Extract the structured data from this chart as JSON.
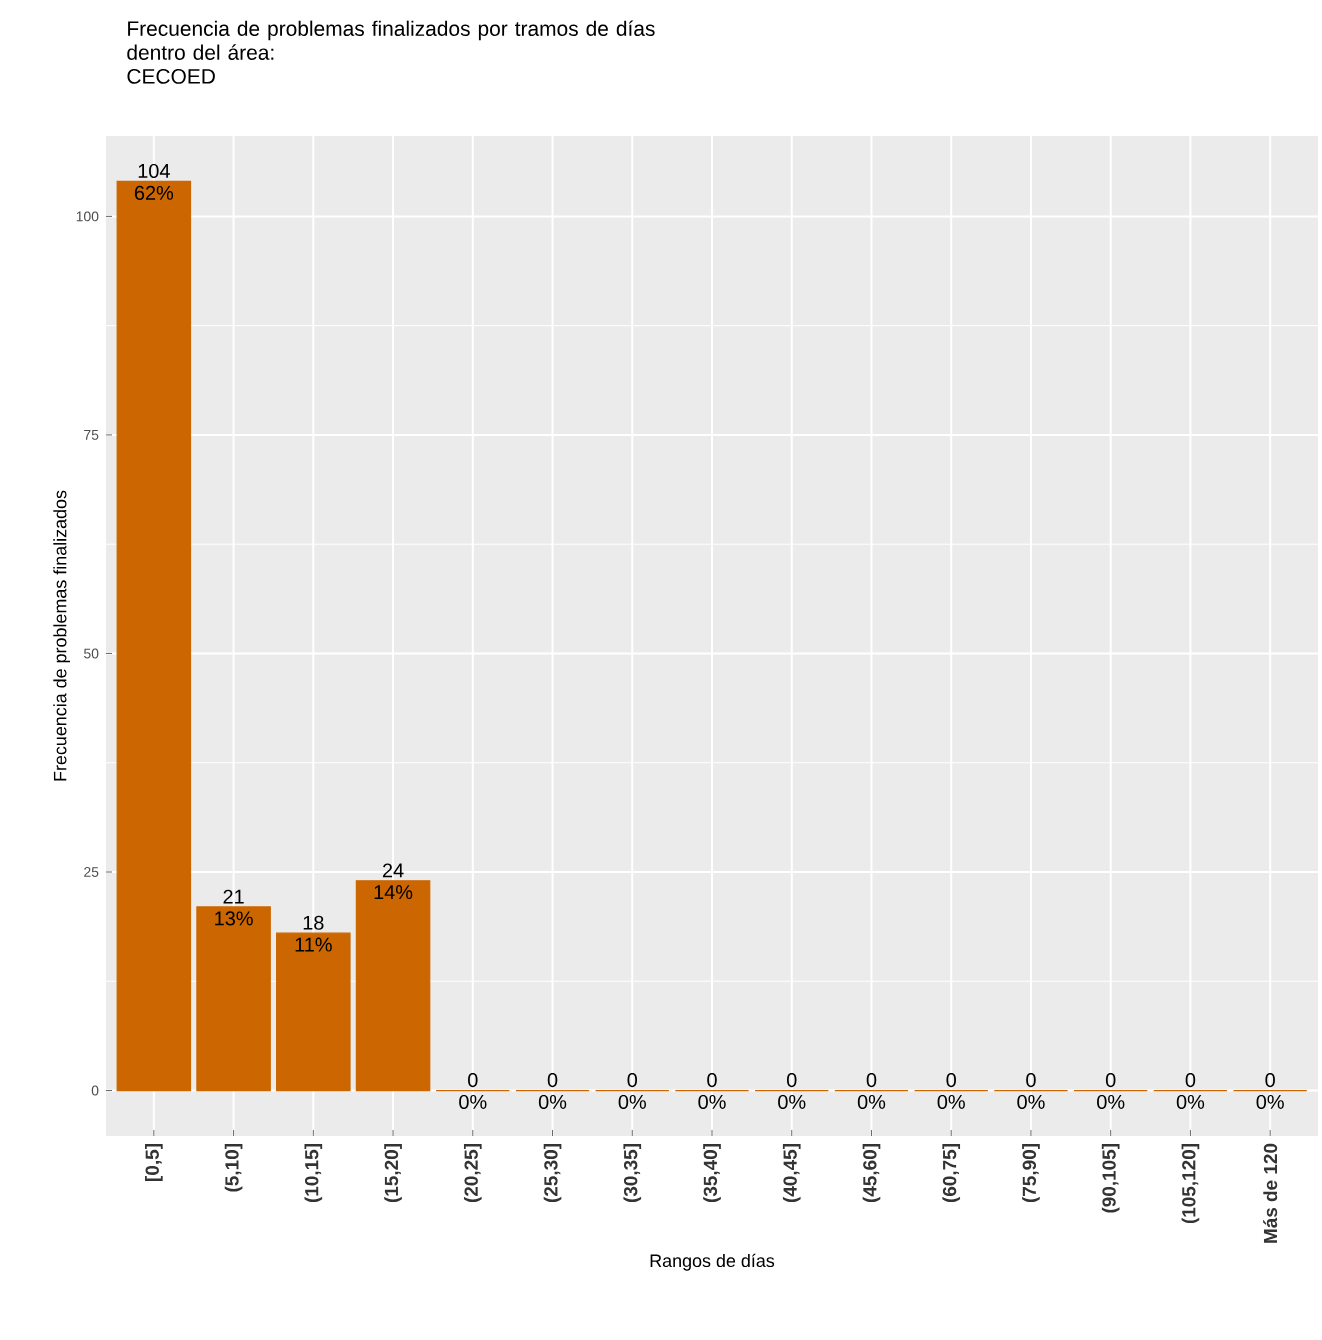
{
  "chart_data": {
    "type": "bar",
    "title": "Frecuencia de problemas finalizados por tramos de días dentro del área:",
    "subtitle": "CECOED",
    "xlabel": "Rangos de días",
    "ylabel": "Frecuencia de problemas finalizados",
    "categories": [
      "[0,5]",
      "(5,10]",
      "(10,15]",
      "(15,20]",
      "(20,25]",
      "(25,30]",
      "(30,35]",
      "(35,40]",
      "(40,45]",
      "(45,60]",
      "(60,75]",
      "(75,90]",
      "(90,105]",
      "(105,120]",
      "Más de 120"
    ],
    "values": [
      104,
      21,
      18,
      24,
      0,
      0,
      0,
      0,
      0,
      0,
      0,
      0,
      0,
      0,
      0
    ],
    "color": "#cc6600",
    "data_labels": true,
    "annotations": [
      {
        "text": "62%",
        "x": "[0,5]",
        "y": 104
      },
      {
        "text": "13%",
        "x": "(5,10]",
        "y": 21
      },
      {
        "text": "11%",
        "x": "(10,15]",
        "y": 18
      },
      {
        "text": "14%",
        "x": "(15,20]",
        "y": 24
      },
      {
        "text": "0%",
        "x": "(20,25]",
        "y": 0
      },
      {
        "text": "0%",
        "x": "(25,30]",
        "y": 0
      },
      {
        "text": "0%",
        "x": "(30,35]",
        "y": 0
      },
      {
        "text": "0%",
        "x": "(35,40]",
        "y": 0
      },
      {
        "text": "0%",
        "x": "(40,45]",
        "y": 0
      },
      {
        "text": "0%",
        "x": "(45,60]",
        "y": 0
      },
      {
        "text": "0%",
        "x": "(60,75]",
        "y": 0
      },
      {
        "text": "0%",
        "x": "(75,90]",
        "y": 0
      },
      {
        "text": "0%",
        "x": "(90,105]",
        "y": 0
      },
      {
        "text": "0%",
        "x": "(105,120]",
        "y": 0
      },
      {
        "text": "0%",
        "x": "Más de 120",
        "y": 0
      }
    ],
    "ylim": [
      -5.2,
      109.2
    ],
    "yticks": [
      0,
      25,
      50,
      75,
      100
    ],
    "grid": true
  }
}
